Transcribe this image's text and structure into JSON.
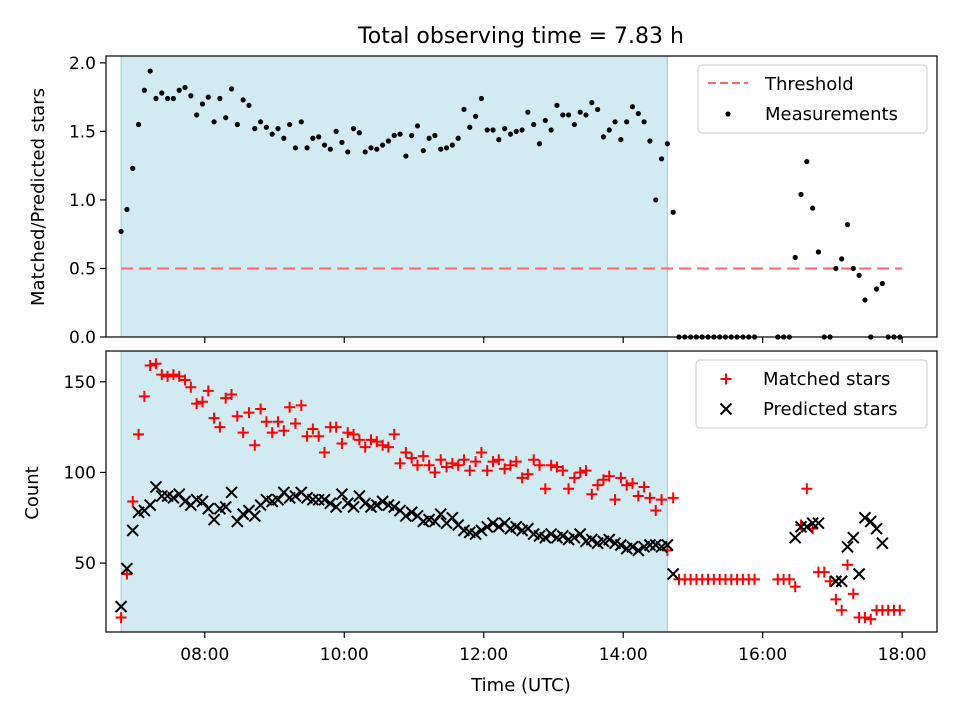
{
  "figure": {
    "title": "Total observing time = 7.83 h",
    "xlabel": "Time (UTC)"
  },
  "colors": {
    "shade": "#add8e6",
    "threshold": "#ff6666",
    "measurements": "#000000",
    "matched": "#ff0000",
    "predicted": "#000000"
  },
  "chart_data": [
    {
      "type": "scatter",
      "panel": "top",
      "title": "Total observing time = 7.83 h",
      "xlabel": "",
      "ylabel": "Matched/Predicted stars",
      "xlim": [
        "06:35",
        "18:30"
      ],
      "ylim": [
        0,
        2.05
      ],
      "x_ticks": [
        "08:00",
        "10:00",
        "12:00",
        "14:00",
        "16:00",
        "18:00"
      ],
      "y_ticks": [
        "0.0",
        "0.5",
        "1.0",
        "1.5",
        "2.0"
      ],
      "grid": false,
      "legend_position": "upper right",
      "shaded_interval": {
        "start": "06:48",
        "end": "14:38"
      },
      "threshold": {
        "name": "Threshold",
        "style": "dashed",
        "y": 0.5,
        "x_start": "06:48",
        "x_end": "18:00"
      },
      "series": [
        {
          "name": "Measurements",
          "marker": "dot",
          "x": [
            "06:48",
            "06:53",
            "06:58",
            "07:03",
            "07:08",
            "07:13",
            "07:18",
            "07:23",
            "07:28",
            "07:33",
            "07:38",
            "07:43",
            "07:48",
            "07:53",
            "07:58",
            "08:03",
            "08:08",
            "08:13",
            "08:18",
            "08:23",
            "08:28",
            "08:33",
            "08:38",
            "08:43",
            "08:48",
            "08:53",
            "08:58",
            "09:03",
            "09:08",
            "09:13",
            "09:18",
            "09:23",
            "09:28",
            "09:33",
            "09:38",
            "09:43",
            "09:48",
            "09:53",
            "09:58",
            "10:03",
            "10:08",
            "10:13",
            "10:18",
            "10:23",
            "10:28",
            "10:33",
            "10:38",
            "10:43",
            "10:48",
            "10:53",
            "10:58",
            "11:03",
            "11:08",
            "11:13",
            "11:18",
            "11:23",
            "11:28",
            "11:33",
            "11:38",
            "11:43",
            "11:48",
            "11:53",
            "11:58",
            "12:03",
            "12:08",
            "12:13",
            "12:18",
            "12:23",
            "12:28",
            "12:33",
            "12:38",
            "12:43",
            "12:48",
            "12:53",
            "12:58",
            "13:03",
            "13:08",
            "13:13",
            "13:18",
            "13:23",
            "13:28",
            "13:33",
            "13:38",
            "13:43",
            "13:48",
            "13:53",
            "13:58",
            "14:03",
            "14:08",
            "14:13",
            "14:18",
            "14:23",
            "14:28",
            "14:33",
            "14:38",
            "14:43",
            "14:48",
            "14:53",
            "14:58",
            "15:03",
            "15:08",
            "15:13",
            "15:18",
            "15:23",
            "15:28",
            "15:33",
            "15:38",
            "15:43",
            "15:48",
            "15:53",
            "16:13",
            "16:18",
            "16:23",
            "16:28",
            "16:33",
            "16:38",
            "16:43",
            "16:48",
            "16:53",
            "16:58",
            "17:03",
            "17:08",
            "17:13",
            "17:18",
            "17:23",
            "17:28",
            "17:33",
            "17:38",
            "17:43",
            "17:48",
            "17:53",
            "17:58"
          ],
          "y": [
            0.77,
            0.93,
            1.23,
            1.55,
            1.8,
            1.94,
            1.74,
            1.78,
            1.74,
            1.74,
            1.8,
            1.82,
            1.76,
            1.62,
            1.7,
            1.75,
            1.57,
            1.74,
            1.6,
            1.81,
            1.55,
            1.73,
            1.69,
            1.52,
            1.57,
            1.53,
            1.48,
            1.52,
            1.45,
            1.55,
            1.38,
            1.57,
            1.38,
            1.45,
            1.46,
            1.4,
            1.37,
            1.5,
            1.42,
            1.35,
            1.52,
            1.49,
            1.35,
            1.38,
            1.37,
            1.4,
            1.43,
            1.47,
            1.48,
            1.32,
            1.47,
            1.54,
            1.36,
            1.45,
            1.47,
            1.37,
            1.38,
            1.4,
            1.45,
            1.66,
            1.53,
            1.61,
            1.74,
            1.51,
            1.51,
            1.44,
            1.52,
            1.48,
            1.5,
            1.51,
            1.64,
            1.55,
            1.41,
            1.58,
            1.51,
            1.69,
            1.62,
            1.62,
            1.55,
            1.64,
            1.62,
            1.71,
            1.66,
            1.46,
            1.51,
            1.57,
            1.44,
            1.57,
            1.68,
            1.63,
            1.57,
            1.43,
            1.0,
            1.3,
            1.41,
            0.91,
            0,
            0,
            0,
            0,
            0,
            0,
            0,
            0,
            0,
            0,
            0,
            0,
            0,
            0,
            0,
            0,
            0,
            0.58,
            1.04,
            1.28,
            0.94,
            0.62,
            0,
            0,
            0.5,
            0.57,
            0.82,
            0.5,
            0.45,
            0.27,
            0,
            0.35,
            0.39,
            0,
            0,
            0
          ]
        }
      ]
    },
    {
      "type": "scatter",
      "panel": "bottom",
      "xlabel": "Time (UTC)",
      "ylabel": "Count",
      "xlim": [
        "06:35",
        "18:30"
      ],
      "ylim": [
        12,
        167
      ],
      "x_ticks": [
        "08:00",
        "10:00",
        "12:00",
        "14:00",
        "16:00",
        "18:00"
      ],
      "y_ticks": [
        "50",
        "100",
        "150"
      ],
      "grid": false,
      "legend_position": "upper right",
      "shaded_interval": {
        "start": "06:48",
        "end": "14:38"
      },
      "series": [
        {
          "name": "Matched stars",
          "marker": "plus",
          "x": [
            "06:48",
            "06:53",
            "06:58",
            "07:03",
            "07:08",
            "07:13",
            "07:18",
            "07:23",
            "07:28",
            "07:33",
            "07:38",
            "07:43",
            "07:48",
            "07:53",
            "07:58",
            "08:03",
            "08:08",
            "08:13",
            "08:18",
            "08:23",
            "08:28",
            "08:33",
            "08:38",
            "08:43",
            "08:48",
            "08:53",
            "08:58",
            "09:03",
            "09:08",
            "09:13",
            "09:18",
            "09:23",
            "09:28",
            "09:33",
            "09:38",
            "09:43",
            "09:48",
            "09:53",
            "09:58",
            "10:03",
            "10:08",
            "10:13",
            "10:18",
            "10:23",
            "10:28",
            "10:33",
            "10:38",
            "10:43",
            "10:48",
            "10:53",
            "10:58",
            "11:03",
            "11:08",
            "11:13",
            "11:18",
            "11:23",
            "11:28",
            "11:33",
            "11:38",
            "11:43",
            "11:48",
            "11:53",
            "11:58",
            "12:03",
            "12:08",
            "12:13",
            "12:18",
            "12:23",
            "12:28",
            "12:33",
            "12:38",
            "12:43",
            "12:48",
            "12:53",
            "12:58",
            "13:03",
            "13:08",
            "13:13",
            "13:18",
            "13:23",
            "13:28",
            "13:33",
            "13:38",
            "13:43",
            "13:48",
            "13:53",
            "13:58",
            "14:03",
            "14:08",
            "14:13",
            "14:18",
            "14:23",
            "14:28",
            "14:33",
            "14:38",
            "14:43",
            "14:48",
            "14:53",
            "14:58",
            "15:03",
            "15:08",
            "15:13",
            "15:18",
            "15:23",
            "15:28",
            "15:33",
            "15:38",
            "15:43",
            "15:48",
            "15:53",
            "16:13",
            "16:18",
            "16:23",
            "16:28",
            "16:33",
            "16:38",
            "16:43",
            "16:48",
            "16:53",
            "16:58",
            "17:03",
            "17:08",
            "17:13",
            "17:18",
            "17:23",
            "17:28",
            "17:33",
            "17:38",
            "17:43",
            "17:48",
            "17:53",
            "17:58"
          ],
          "y": [
            20,
            44,
            84,
            121,
            142,
            159,
            160,
            154,
            153,
            154,
            153,
            151,
            147,
            138,
            139,
            145,
            130,
            125,
            141,
            143,
            131,
            122,
            133,
            115,
            135,
            128,
            122,
            128,
            123,
            136,
            127,
            137,
            120,
            124,
            120,
            111,
            125,
            125,
            116,
            122,
            121,
            118,
            114,
            118,
            117,
            115,
            114,
            121,
            105,
            111,
            108,
            104,
            109,
            104,
            100,
            107,
            103,
            105,
            104,
            107,
            101,
            106,
            111,
            101,
            106,
            107,
            102,
            104,
            106,
            97,
            99,
            107,
            104,
            91,
            104,
            103,
            101,
            91,
            97,
            100,
            101,
            88,
            93,
            96,
            98,
            85,
            97,
            93,
            94,
            87,
            92,
            86,
            79,
            85,
            57,
            86,
            41,
            41,
            41,
            41,
            41,
            41,
            41,
            41,
            41,
            41,
            41,
            41,
            41,
            41,
            41,
            41,
            41,
            37,
            71,
            91,
            69,
            45,
            45,
            40,
            30,
            24,
            49,
            33,
            20,
            20,
            19,
            24,
            24,
            24,
            24,
            24
          ]
        },
        {
          "name": "Predicted stars",
          "marker": "x",
          "x": [
            "06:48",
            "06:53",
            "06:58",
            "07:03",
            "07:08",
            "07:13",
            "07:18",
            "07:23",
            "07:28",
            "07:33",
            "07:38",
            "07:43",
            "07:48",
            "07:53",
            "07:58",
            "08:03",
            "08:08",
            "08:13",
            "08:18",
            "08:23",
            "08:28",
            "08:33",
            "08:38",
            "08:43",
            "08:48",
            "08:53",
            "08:58",
            "09:03",
            "09:08",
            "09:13",
            "09:18",
            "09:23",
            "09:28",
            "09:33",
            "09:38",
            "09:43",
            "09:48",
            "09:53",
            "09:58",
            "10:03",
            "10:08",
            "10:13",
            "10:18",
            "10:23",
            "10:28",
            "10:33",
            "10:38",
            "10:43",
            "10:48",
            "10:53",
            "10:58",
            "11:03",
            "11:08",
            "11:13",
            "11:18",
            "11:23",
            "11:28",
            "11:33",
            "11:38",
            "11:43",
            "11:48",
            "11:53",
            "11:58",
            "12:03",
            "12:08",
            "12:13",
            "12:18",
            "12:23",
            "12:28",
            "12:33",
            "12:38",
            "12:43",
            "12:48",
            "12:53",
            "12:58",
            "13:03",
            "13:08",
            "13:13",
            "13:18",
            "13:23",
            "13:28",
            "13:33",
            "13:38",
            "13:43",
            "13:48",
            "13:53",
            "13:58",
            "14:03",
            "14:08",
            "14:13",
            "14:18",
            "14:23",
            "14:28",
            "14:33",
            "14:38",
            "14:43",
            "16:28",
            "16:33",
            "16:38",
            "16:43",
            "16:48",
            "17:03",
            "17:08",
            "17:13",
            "17:18",
            "17:23",
            "17:28",
            "17:33",
            "17:38",
            "17:43"
          ],
          "y": [
            26,
            47,
            68,
            78,
            79,
            82,
            92,
            87,
            87,
            86,
            88,
            84,
            82,
            85,
            84,
            80,
            74,
            80,
            81,
            89,
            73,
            77,
            79,
            76,
            82,
            85,
            84,
            85,
            89,
            86,
            87,
            89,
            86,
            85,
            85,
            85,
            83,
            81,
            88,
            83,
            81,
            87,
            83,
            81,
            82,
            84,
            82,
            81,
            79,
            76,
            78,
            76,
            73,
            74,
            73,
            77,
            72,
            75,
            71,
            68,
            67,
            66,
            68,
            70,
            72,
            70,
            72,
            69,
            70,
            68,
            69,
            66,
            65,
            64,
            66,
            64,
            65,
            63,
            64,
            66,
            62,
            63,
            61,
            62,
            63,
            61,
            60,
            58,
            59,
            57,
            59,
            60,
            60,
            59,
            60,
            44,
            64,
            70,
            70,
            72,
            72,
            40,
            40,
            59,
            64,
            44,
            75,
            73,
            69,
            61
          ]
        }
      ]
    }
  ]
}
